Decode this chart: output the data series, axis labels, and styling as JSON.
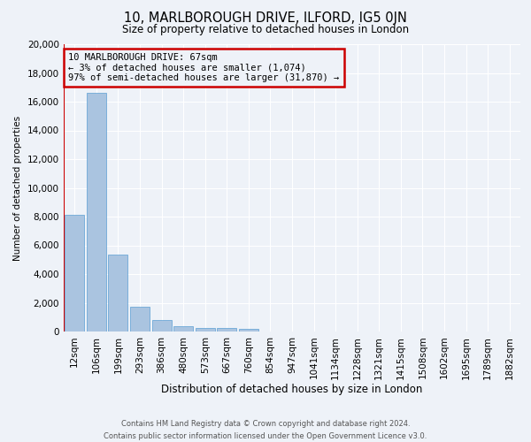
{
  "title": "10, MARLBOROUGH DRIVE, ILFORD, IG5 0JN",
  "subtitle": "Size of property relative to detached houses in London",
  "xlabel": "Distribution of detached houses by size in London",
  "ylabel": "Number of detached properties",
  "footer_line1": "Contains HM Land Registry data © Crown copyright and database right 2024.",
  "footer_line2": "Contains public sector information licensed under the Open Government Licence v3.0.",
  "categories": [
    "12sqm",
    "106sqm",
    "199sqm",
    "293sqm",
    "386sqm",
    "480sqm",
    "573sqm",
    "667sqm",
    "760sqm",
    "854sqm",
    "947sqm",
    "1041sqm",
    "1134sqm",
    "1228sqm",
    "1321sqm",
    "1415sqm",
    "1508sqm",
    "1602sqm",
    "1695sqm",
    "1789sqm",
    "1882sqm"
  ],
  "values": [
    8100,
    16600,
    5350,
    1750,
    800,
    380,
    270,
    220,
    200,
    0,
    0,
    0,
    0,
    0,
    0,
    0,
    0,
    0,
    0,
    0,
    0
  ],
  "bar_color": "#aac4e0",
  "bar_edge_color": "#5a9fd4",
  "background_color": "#eef2f8",
  "grid_color": "#ffffff",
  "annotation_text_line1": "10 MARLBOROUGH DRIVE: 67sqm",
  "annotation_text_line2": "← 3% of detached houses are smaller (1,074)",
  "annotation_text_line3": "97% of semi-detached houses are larger (31,870) →",
  "vline_color": "#cc0000",
  "annotation_box_color": "#cc0000",
  "ylim": [
    0,
    20000
  ],
  "yticks": [
    0,
    2000,
    4000,
    6000,
    8000,
    10000,
    12000,
    14000,
    16000,
    18000,
    20000
  ],
  "title_fontsize": 10.5,
  "subtitle_fontsize": 8.5,
  "xlabel_fontsize": 8.5,
  "ylabel_fontsize": 7.5,
  "tick_fontsize": 7.5,
  "annot_fontsize": 7.5,
  "footer_fontsize": 6.0
}
